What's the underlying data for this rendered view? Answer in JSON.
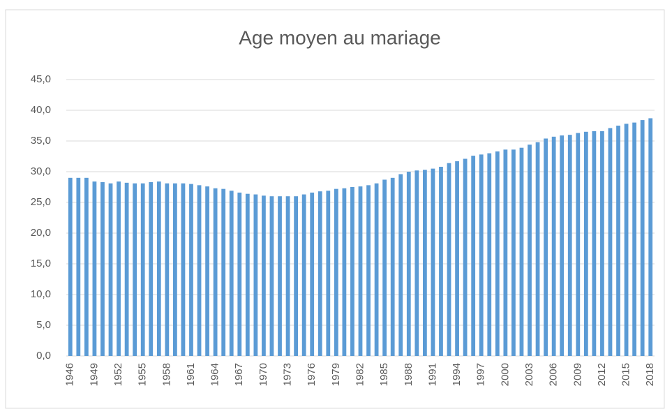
{
  "chart_data": {
    "type": "bar",
    "title": "Age moyen au mariage",
    "categories": [
      "1946",
      null,
      null,
      "1949",
      null,
      null,
      "1952",
      null,
      null,
      "1955",
      null,
      null,
      "1958",
      null,
      null,
      "1961",
      null,
      null,
      "1964",
      null,
      null,
      "1967",
      null,
      null,
      "1970",
      null,
      null,
      "1973",
      null,
      null,
      "1976",
      null,
      null,
      "1979",
      null,
      null,
      "1982",
      null,
      null,
      "1985",
      null,
      null,
      "1988",
      null,
      null,
      "1991",
      null,
      null,
      "1994",
      null,
      null,
      "1997",
      null,
      null,
      "2000",
      null,
      null,
      "2003",
      null,
      null,
      "2006",
      null,
      null,
      "2009",
      null,
      null,
      "2012",
      null,
      null,
      "2015",
      null,
      null,
      "2018"
    ],
    "values": [
      29.0,
      29.0,
      29.0,
      28.4,
      28.3,
      28.1,
      28.4,
      28.2,
      28.1,
      28.1,
      28.3,
      28.4,
      28.1,
      28.1,
      28.1,
      28.0,
      27.8,
      27.6,
      27.3,
      27.2,
      26.9,
      26.6,
      26.4,
      26.3,
      26.1,
      26.0,
      26.0,
      26.0,
      26.0,
      26.3,
      26.6,
      26.8,
      26.9,
      27.2,
      27.3,
      27.5,
      27.6,
      27.8,
      28.1,
      28.7,
      29.0,
      29.6,
      30.0,
      30.2,
      30.3,
      30.5,
      30.8,
      31.4,
      31.7,
      32.1,
      32.6,
      32.8,
      33.0,
      33.3,
      33.6,
      33.6,
      33.9,
      34.4,
      34.8,
      35.4,
      35.7,
      35.9,
      36.0,
      36.3,
      36.5,
      36.6,
      36.6,
      37.1,
      37.5,
      37.8,
      38.0,
      38.4,
      38.7
    ],
    "color": "#5b9bd5",
    "ylim": [
      0,
      45
    ],
    "yticks": [
      {
        "value": 0,
        "label": "0,0"
      },
      {
        "value": 5,
        "label": "5,0"
      },
      {
        "value": 10,
        "label": "10,0"
      },
      {
        "value": 15,
        "label": "15,0"
      },
      {
        "value": 20,
        "label": "20,0"
      },
      {
        "value": 25,
        "label": "25,0"
      },
      {
        "value": 30,
        "label": "30,0"
      },
      {
        "value": 35,
        "label": "35,0"
      },
      {
        "value": 40,
        "label": "40,0"
      },
      {
        "value": 45,
        "label": "45,0"
      }
    ],
    "grid": true
  }
}
